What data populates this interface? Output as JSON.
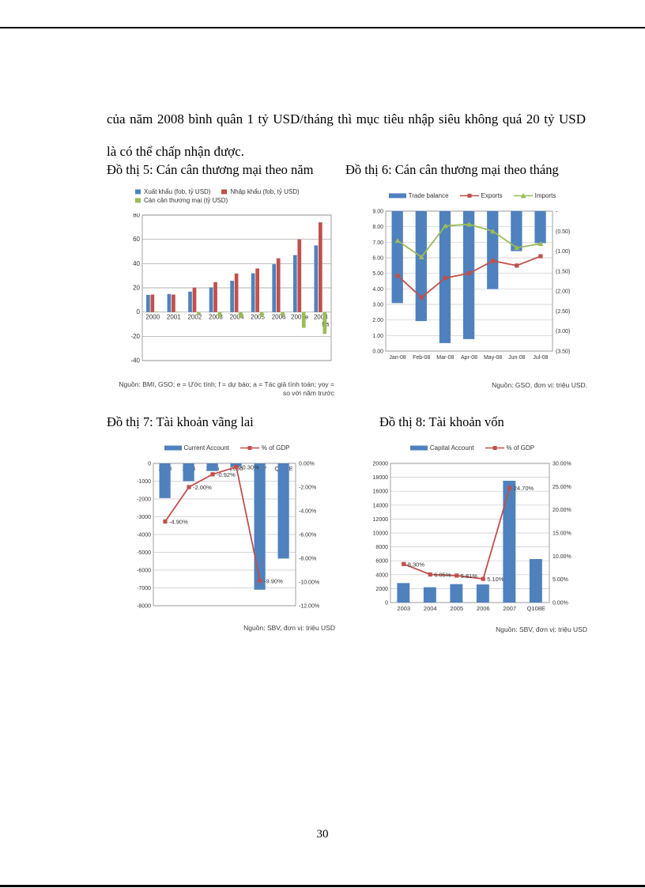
{
  "page": {
    "paragraph_line1": "của năm 2008 bình quân 1 tỷ USD/tháng thì mục tiêu nhập siêu không quá 20 tỷ USD",
    "paragraph_line2": "là có thể chấp nhận được.",
    "page_number": "30"
  },
  "colors": {
    "bar_blue": "#4f81bd",
    "line_red": "#c0504d",
    "line_green": "#9bbb59"
  },
  "chart_data": [
    {
      "id": "do-thi-5",
      "type": "bar",
      "title": "Đồ thị 5: Cán cân thương mại theo năm",
      "categories": [
        "2000",
        "2001",
        "2002",
        "2003",
        "2004",
        "2005",
        "2006",
        "2007e",
        "2008"
      ],
      "x_sublabels": [
        "",
        "",
        "",
        "",
        "",
        "",
        "",
        "",
        "f,a"
      ],
      "series": [
        {
          "name": "Xuất khẩu (fob, tỷ USD)",
          "type": "bar",
          "axis": "left",
          "color": "#4f81bd",
          "values": [
            14.2,
            14.9,
            16.9,
            20.4,
            25.8,
            32,
            39.5,
            47,
            55
          ]
        },
        {
          "name": "Nhập khẩu (fob, tỷ USD)",
          "type": "bar",
          "axis": "left",
          "color": "#c0504d",
          "values": [
            14.4,
            14.4,
            20.2,
            24.7,
            31.8,
            36,
            44.4,
            60,
            74
          ]
        },
        {
          "name": "Cán cân thương mại (tỷ USD)",
          "type": "bar",
          "axis": "left",
          "color": "#9bbb59",
          "values": [
            0.4,
            0.4,
            -2,
            -4.5,
            -5,
            -4,
            -3,
            -13,
            -18
          ]
        }
      ],
      "left_range": [
        -40,
        80
      ],
      "left_ticks": [
        "80",
        "60",
        "40",
        "20",
        "0",
        "-20",
        "-40"
      ],
      "grid": true,
      "source": "Nguồn: BMI, GSO; e = Ước tính; f = dự báo; a = Tác giả tính toán; yoy = so với năm trước"
    },
    {
      "id": "do-thi-6",
      "type": "bar-line-dual-axis",
      "title": "Đồ thị 6: Cán cân thương mại theo tháng",
      "categories": [
        "Jan-08",
        "Feb-08",
        "Mar-08",
        "Apr-08",
        "May-08",
        "Jun-08",
        "Jul-08"
      ],
      "series": [
        {
          "name": "Trade balance",
          "type": "bar",
          "axis": "right",
          "color": "#4f81bd",
          "values": [
            -2.3,
            -2.75,
            -3.3,
            -3.2,
            -1.95,
            -1.0,
            -0.8
          ]
        },
        {
          "name": "Exports",
          "type": "line",
          "marker": "square",
          "axis": "left",
          "color": "#c0504d",
          "values": [
            4.85,
            3.45,
            4.7,
            5.0,
            5.8,
            5.5,
            6.1
          ]
        },
        {
          "name": "Imports",
          "type": "line",
          "marker": "triangle",
          "axis": "left",
          "color": "#9bbb59",
          "values": [
            7.1,
            6.05,
            8.05,
            8.15,
            7.7,
            6.65,
            6.9
          ]
        }
      ],
      "left_range": [
        0,
        9
      ],
      "left_ticks": [
        "9.00",
        "8.00",
        "7.00",
        "6.00",
        "5.00",
        "4.00",
        "3.00",
        "2.00",
        "1.00",
        "0.00"
      ],
      "right_range": [
        -3.5,
        0
      ],
      "right_ticks": [
        "-",
        "(0.50)",
        "(1.00)",
        "(1.50)",
        "(2.00)",
        "(2.50)",
        "(3.00)",
        "(3.50)"
      ],
      "grid": true,
      "source": "Nguồn: GSO, đơn vị: triệu USD."
    },
    {
      "id": "do-thi-7",
      "type": "bar-line-dual-axis",
      "title": "Đồ thị 7: Tài khoản vãng lai",
      "categories": [
        "2003",
        "2004",
        "2005",
        "2006",
        "2007",
        "Q108E"
      ],
      "series": [
        {
          "name": "Current Account",
          "type": "bar",
          "axis": "left",
          "color": "#4f81bd",
          "values": [
            -1950,
            -1000,
            -430,
            -190,
            -7100,
            -5350
          ]
        },
        {
          "name": "% of GDP",
          "type": "line",
          "marker": "square",
          "axis": "right",
          "color": "#c0504d",
          "values": [
            -4.9,
            -2.0,
            -0.92,
            -0.3,
            -9.9,
            null
          ],
          "point_labels": [
            "-4.90%",
            "-2.00%",
            "-0.92%",
            "-0.30%",
            "-9.90%",
            ""
          ]
        }
      ],
      "left_range": [
        -8000,
        0
      ],
      "left_ticks": [
        "0",
        "-1000",
        "-2000",
        "-3000",
        "-4000",
        "-5000",
        "-6000",
        "-7000",
        "-8000"
      ],
      "right_range": [
        -12,
        0
      ],
      "right_ticks": [
        "0.00%",
        "-2.00%",
        "-4.00%",
        "-6.00%",
        "-8.00%",
        "-10.00%",
        "-12.00%"
      ],
      "grid": true,
      "source": "Nguồn: SBV, đơn vị: triệu USD"
    },
    {
      "id": "do-thi-8",
      "type": "bar-line-dual-axis",
      "title": "Đồ thị 8: Tài khoản vốn",
      "categories": [
        "2003",
        "2004",
        "2005",
        "2006",
        "2007",
        "Q108E"
      ],
      "series": [
        {
          "name": "Capital Account",
          "type": "bar",
          "axis": "left",
          "color": "#4f81bd",
          "values": [
            2800,
            2200,
            2650,
            2600,
            17500,
            6250
          ]
        },
        {
          "name": "% of GDP",
          "type": "line",
          "marker": "square",
          "axis": "right",
          "color": "#c0504d",
          "values": [
            8.3,
            6.05,
            5.81,
            5.1,
            24.7,
            null
          ],
          "point_labels": [
            "8.30%",
            "6.05%",
            "5.81%",
            "5.10%",
            "24.70%",
            ""
          ]
        }
      ],
      "left_range": [
        0,
        20000
      ],
      "left_ticks": [
        "20000",
        "18000",
        "16000",
        "14000",
        "12000",
        "10000",
        "8000",
        "6000",
        "4000",
        "2000",
        "0"
      ],
      "right_range": [
        0,
        30
      ],
      "right_ticks": [
        "30.00%",
        "25.00%",
        "20.00%",
        "15.00%",
        "10.00%",
        "5.00%",
        "0.00%"
      ],
      "grid": true,
      "source": "Nguồn: SBV, đơn vị: triệu USD"
    }
  ]
}
